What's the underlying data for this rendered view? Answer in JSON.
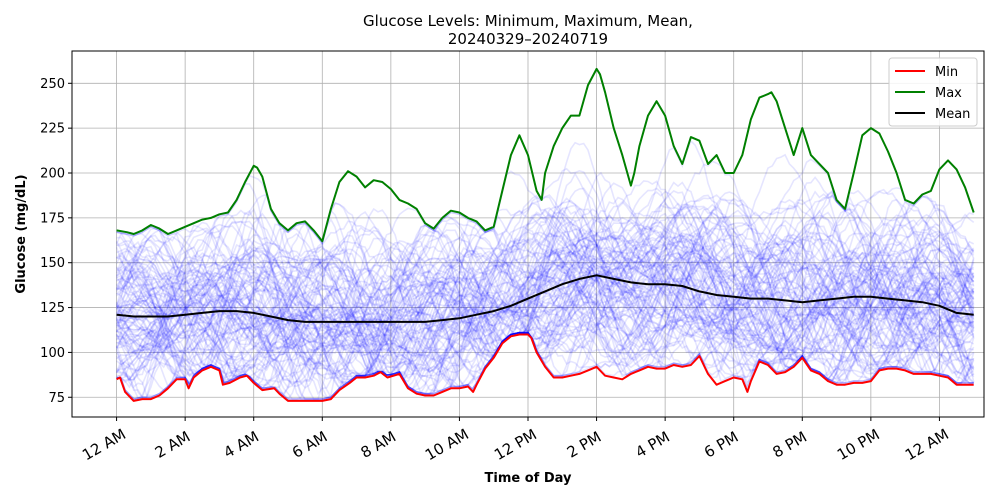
{
  "chart_data": {
    "type": "line",
    "title_line1": "Glucose Levels: Minimum, Maximum, Mean,",
    "title_line2": "20240329–20240719",
    "xlabel": "Time of Day",
    "ylabel": "Glucose (mg/dL)",
    "xlim": [
      -1.3,
      25.3
    ],
    "ylim": [
      64,
      268
    ],
    "grid": true,
    "legend_position": "top-right",
    "x_ticks": [
      {
        "x": 0,
        "label": "12 AM"
      },
      {
        "x": 2,
        "label": "2 AM"
      },
      {
        "x": 4,
        "label": "4 AM"
      },
      {
        "x": 6,
        "label": "6 AM"
      },
      {
        "x": 8,
        "label": "8 AM"
      },
      {
        "x": 10,
        "label": "10 AM"
      },
      {
        "x": 12,
        "label": "12 PM"
      },
      {
        "x": 14,
        "label": "2 PM"
      },
      {
        "x": 16,
        "label": "4 PM"
      },
      {
        "x": 18,
        "label": "6 PM"
      },
      {
        "x": 20,
        "label": "8 PM"
      },
      {
        "x": 22,
        "label": "10 PM"
      },
      {
        "x": 24,
        "label": "12 AM"
      }
    ],
    "y_ticks": [
      {
        "y": 75,
        "label": "75"
      },
      {
        "y": 100,
        "label": "100"
      },
      {
        "y": 125,
        "label": "125"
      },
      {
        "y": 150,
        "label": "150"
      },
      {
        "y": 175,
        "label": "175"
      },
      {
        "y": 200,
        "label": "200"
      },
      {
        "y": 225,
        "label": "225"
      },
      {
        "y": 250,
        "label": "250"
      }
    ],
    "background_traces": {
      "count": 110,
      "color": "#0000ff",
      "opacity": 0.1
    },
    "series": [
      {
        "name": "Min",
        "color": "#ff0000",
        "points": [
          [
            0,
            85
          ],
          [
            0.1,
            86
          ],
          [
            0.25,
            78
          ],
          [
            0.5,
            73
          ],
          [
            0.75,
            74
          ],
          [
            1,
            74
          ],
          [
            1.25,
            76
          ],
          [
            1.5,
            80
          ],
          [
            1.75,
            85
          ],
          [
            2,
            85
          ],
          [
            2.1,
            80
          ],
          [
            2.25,
            86
          ],
          [
            2.5,
            90
          ],
          [
            2.75,
            92
          ],
          [
            3,
            90
          ],
          [
            3.1,
            82
          ],
          [
            3.3,
            83
          ],
          [
            3.6,
            86
          ],
          [
            3.8,
            87
          ],
          [
            4,
            83
          ],
          [
            4.25,
            79
          ],
          [
            4.6,
            80
          ],
          [
            4.75,
            77
          ],
          [
            5,
            73
          ],
          [
            5.5,
            73
          ],
          [
            6,
            73
          ],
          [
            6.25,
            74
          ],
          [
            6.5,
            79
          ],
          [
            6.8,
            83
          ],
          [
            7,
            86
          ],
          [
            7.25,
            86
          ],
          [
            7.5,
            87
          ],
          [
            7.7,
            89
          ],
          [
            7.9,
            86
          ],
          [
            8.25,
            88
          ],
          [
            8.5,
            80
          ],
          [
            8.75,
            77
          ],
          [
            9,
            76
          ],
          [
            9.25,
            76
          ],
          [
            9.5,
            78
          ],
          [
            9.75,
            80
          ],
          [
            10,
            80
          ],
          [
            10.25,
            81
          ],
          [
            10.4,
            78
          ],
          [
            10.5,
            82
          ],
          [
            10.75,
            91
          ],
          [
            11,
            97
          ],
          [
            11.25,
            105
          ],
          [
            11.5,
            109
          ],
          [
            11.75,
            110
          ],
          [
            12,
            110
          ],
          [
            12.1,
            108
          ],
          [
            12.25,
            100
          ],
          [
            12.5,
            92
          ],
          [
            12.75,
            86
          ],
          [
            13,
            86
          ],
          [
            13.25,
            87
          ],
          [
            13.5,
            88
          ],
          [
            13.75,
            90
          ],
          [
            14,
            92
          ],
          [
            14.25,
            87
          ],
          [
            14.5,
            86
          ],
          [
            14.75,
            85
          ],
          [
            15,
            88
          ],
          [
            15.25,
            90
          ],
          [
            15.5,
            92
          ],
          [
            15.75,
            91
          ],
          [
            16,
            91
          ],
          [
            16.25,
            93
          ],
          [
            16.5,
            92
          ],
          [
            16.75,
            93
          ],
          [
            17,
            98
          ],
          [
            17.25,
            88
          ],
          [
            17.5,
            82
          ],
          [
            17.75,
            84
          ],
          [
            18,
            86
          ],
          [
            18.25,
            85
          ],
          [
            18.4,
            78
          ],
          [
            18.5,
            84
          ],
          [
            18.75,
            95
          ],
          [
            19,
            93
          ],
          [
            19.25,
            88
          ],
          [
            19.5,
            89
          ],
          [
            19.75,
            92
          ],
          [
            20,
            97
          ],
          [
            20.25,
            90
          ],
          [
            20.5,
            88
          ],
          [
            20.75,
            84
          ],
          [
            21,
            82
          ],
          [
            21.25,
            82
          ],
          [
            21.5,
            83
          ],
          [
            21.75,
            83
          ],
          [
            22,
            84
          ],
          [
            22.25,
            90
          ],
          [
            22.5,
            91
          ],
          [
            22.75,
            91
          ],
          [
            23,
            90
          ],
          [
            23.25,
            88
          ],
          [
            23.5,
            88
          ],
          [
            23.75,
            88
          ],
          [
            24,
            87
          ],
          [
            24.25,
            86
          ],
          [
            24.5,
            82
          ],
          [
            24.75,
            82
          ],
          [
            25,
            82
          ]
        ]
      },
      {
        "name": "Max",
        "color": "#008000",
        "points": [
          [
            0,
            168
          ],
          [
            0.3,
            167
          ],
          [
            0.5,
            166
          ],
          [
            0.75,
            168
          ],
          [
            1,
            171
          ],
          [
            1.25,
            169
          ],
          [
            1.5,
            166
          ],
          [
            1.75,
            168
          ],
          [
            2,
            170
          ],
          [
            2.25,
            172
          ],
          [
            2.5,
            174
          ],
          [
            2.75,
            175
          ],
          [
            3,
            177
          ],
          [
            3.25,
            178
          ],
          [
            3.5,
            185
          ],
          [
            3.75,
            195
          ],
          [
            4,
            204
          ],
          [
            4.1,
            203
          ],
          [
            4.25,
            198
          ],
          [
            4.5,
            180
          ],
          [
            4.75,
            172
          ],
          [
            5,
            168
          ],
          [
            5.25,
            172
          ],
          [
            5.5,
            173
          ],
          [
            5.75,
            168
          ],
          [
            6,
            162
          ],
          [
            6.25,
            180
          ],
          [
            6.5,
            195
          ],
          [
            6.75,
            201
          ],
          [
            7,
            198
          ],
          [
            7.25,
            192
          ],
          [
            7.5,
            196
          ],
          [
            7.75,
            195
          ],
          [
            8,
            191
          ],
          [
            8.25,
            185
          ],
          [
            8.5,
            183
          ],
          [
            8.75,
            180
          ],
          [
            9,
            172
          ],
          [
            9.25,
            169
          ],
          [
            9.5,
            175
          ],
          [
            9.75,
            179
          ],
          [
            10,
            178
          ],
          [
            10.25,
            175
          ],
          [
            10.5,
            173
          ],
          [
            10.75,
            168
          ],
          [
            11,
            170
          ],
          [
            11.25,
            190
          ],
          [
            11.5,
            210
          ],
          [
            11.75,
            221
          ],
          [
            12,
            210
          ],
          [
            12.25,
            190
          ],
          [
            12.4,
            185
          ],
          [
            12.5,
            200
          ],
          [
            12.75,
            215
          ],
          [
            13,
            225
          ],
          [
            13.25,
            232
          ],
          [
            13.5,
            232
          ],
          [
            13.75,
            249
          ],
          [
            14,
            258
          ],
          [
            14.1,
            255
          ],
          [
            14.25,
            245
          ],
          [
            14.5,
            225
          ],
          [
            14.75,
            210
          ],
          [
            15,
            193
          ],
          [
            15.1,
            200
          ],
          [
            15.25,
            215
          ],
          [
            15.5,
            232
          ],
          [
            15.75,
            240
          ],
          [
            16,
            232
          ],
          [
            16.25,
            215
          ],
          [
            16.5,
            205
          ],
          [
            16.75,
            220
          ],
          [
            17,
            218
          ],
          [
            17.25,
            205
          ],
          [
            17.5,
            210
          ],
          [
            17.75,
            200
          ],
          [
            18,
            200
          ],
          [
            18.25,
            210
          ],
          [
            18.5,
            230
          ],
          [
            18.75,
            242
          ],
          [
            19,
            244
          ],
          [
            19.1,
            245
          ],
          [
            19.25,
            240
          ],
          [
            19.5,
            225
          ],
          [
            19.75,
            210
          ],
          [
            20,
            225
          ],
          [
            20.25,
            210
          ],
          [
            20.5,
            205
          ],
          [
            20.75,
            200
          ],
          [
            21,
            185
          ],
          [
            21.25,
            180
          ],
          [
            21.5,
            200
          ],
          [
            21.75,
            221
          ],
          [
            22,
            225
          ],
          [
            22.25,
            222
          ],
          [
            22.5,
            212
          ],
          [
            22.75,
            200
          ],
          [
            23,
            185
          ],
          [
            23.25,
            183
          ],
          [
            23.5,
            188
          ],
          [
            23.75,
            190
          ],
          [
            24,
            202
          ],
          [
            24.25,
            207
          ],
          [
            24.5,
            202
          ],
          [
            24.75,
            192
          ],
          [
            25,
            178
          ]
        ]
      },
      {
        "name": "Mean",
        "color": "#000000",
        "points": [
          [
            0,
            121
          ],
          [
            0.5,
            120
          ],
          [
            1,
            120
          ],
          [
            1.5,
            120
          ],
          [
            2,
            121
          ],
          [
            2.5,
            122
          ],
          [
            3,
            123
          ],
          [
            3.5,
            123
          ],
          [
            4,
            122
          ],
          [
            4.5,
            120
          ],
          [
            5,
            118
          ],
          [
            5.5,
            117
          ],
          [
            6,
            117
          ],
          [
            6.5,
            117
          ],
          [
            7,
            117
          ],
          [
            7.5,
            117
          ],
          [
            8,
            117
          ],
          [
            8.5,
            117
          ],
          [
            9,
            117
          ],
          [
            9.5,
            118
          ],
          [
            10,
            119
          ],
          [
            10.5,
            121
          ],
          [
            11,
            123
          ],
          [
            11.5,
            126
          ],
          [
            12,
            130
          ],
          [
            12.5,
            134
          ],
          [
            13,
            138
          ],
          [
            13.5,
            141
          ],
          [
            14,
            143
          ],
          [
            14.5,
            141
          ],
          [
            15,
            139
          ],
          [
            15.5,
            138
          ],
          [
            16,
            138
          ],
          [
            16.5,
            137
          ],
          [
            17,
            134
          ],
          [
            17.5,
            132
          ],
          [
            18,
            131
          ],
          [
            18.5,
            130
          ],
          [
            19,
            130
          ],
          [
            19.5,
            129
          ],
          [
            20,
            128
          ],
          [
            20.5,
            129
          ],
          [
            21,
            130
          ],
          [
            21.5,
            131
          ],
          [
            22,
            131
          ],
          [
            22.5,
            130
          ],
          [
            23,
            129
          ],
          [
            23.5,
            128
          ],
          [
            24,
            126
          ],
          [
            24.5,
            122
          ],
          [
            25,
            121
          ]
        ]
      }
    ]
  }
}
